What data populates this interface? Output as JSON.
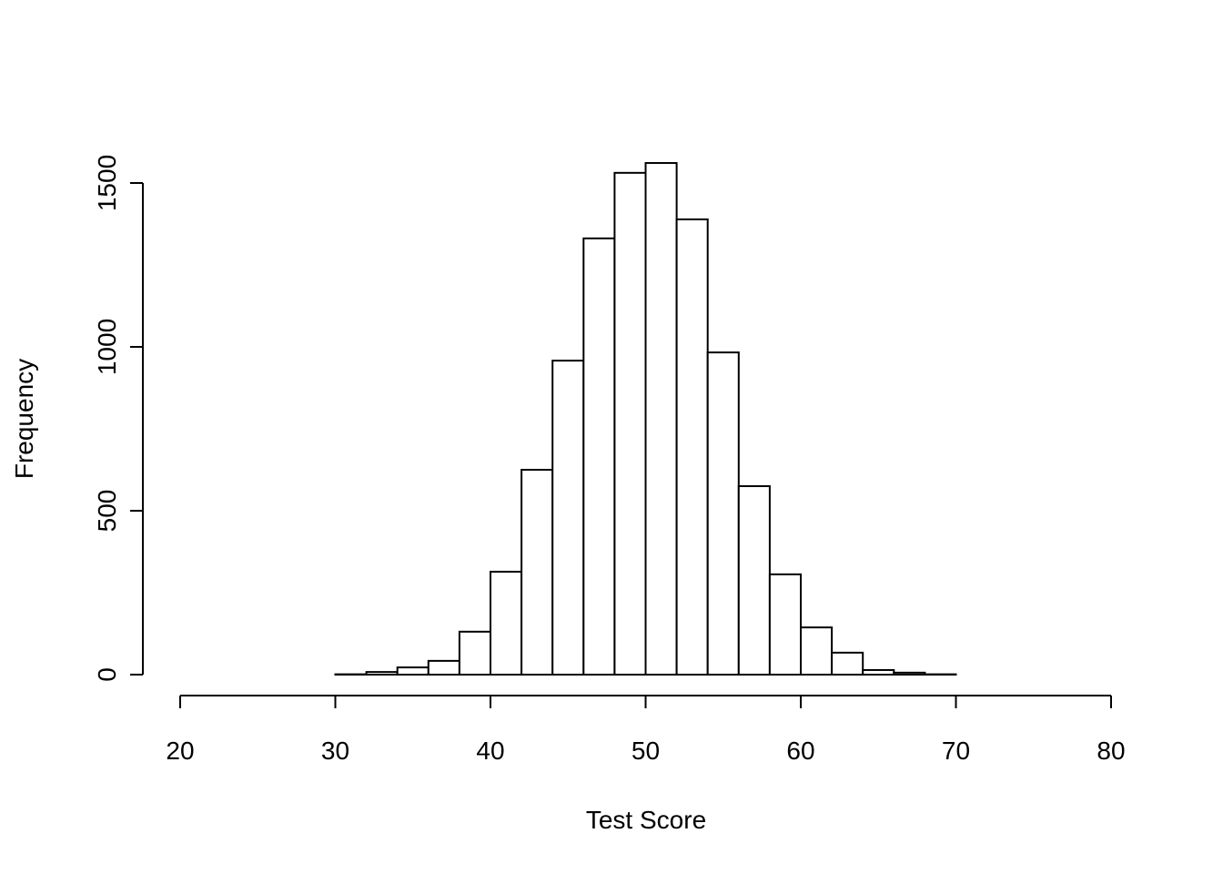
{
  "chart_data": {
    "type": "histogram",
    "x_label": "Test Score",
    "y_label": "Frequency",
    "bins": [
      30,
      32,
      34,
      36,
      38,
      40,
      42,
      44,
      46,
      48,
      50,
      52,
      54,
      56,
      58,
      60,
      62,
      64,
      66,
      68,
      70
    ],
    "values": [
      1,
      8,
      22,
      42,
      131,
      314,
      625,
      958,
      1331,
      1531,
      1561,
      1389,
      983,
      575,
      306,
      144,
      67,
      14,
      6,
      1
    ],
    "color": "#ffffff",
    "xlim": [
      20,
      80
    ],
    "xticks": [
      20,
      30,
      40,
      50,
      60,
      70,
      80
    ],
    "ylim": [
      0,
      1500
    ],
    "yticks": [
      0,
      500,
      1000,
      1500
    ]
  }
}
